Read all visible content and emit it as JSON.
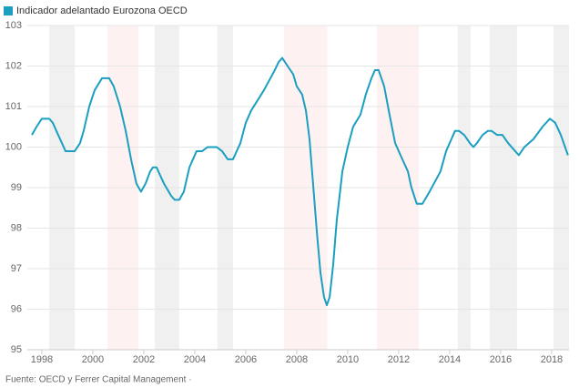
{
  "chart_data": {
    "type": "line",
    "legend": "top-left",
    "grid": true,
    "source": "Fuente: OECD y Ferrer Capital Management ·",
    "xlim": [
      1997.43,
      2018.68
    ],
    "xticks": [
      1998,
      2000,
      2002,
      2004,
      2006,
      2008,
      2010,
      2012,
      2014,
      2016,
      2018
    ],
    "ylim": [
      95,
      103
    ],
    "yticks": [
      95,
      96,
      97,
      98,
      99,
      100,
      101,
      102,
      103
    ],
    "bands": [
      {
        "start": 1998.29,
        "end": 1999.29,
        "color": "#f0f0f0"
      },
      {
        "start": 2000.57,
        "end": 2001.79,
        "color": "#fdf1f1"
      },
      {
        "start": 2002.43,
        "end": 2003.39,
        "color": "#f0f0f0"
      },
      {
        "start": 2004.89,
        "end": 2005.5,
        "color": "#f0f0f0"
      },
      {
        "start": 2007.5,
        "end": 2009.2,
        "color": "#fdf1f1"
      },
      {
        "start": 2011.14,
        "end": 2012.79,
        "color": "#fdf1f1"
      },
      {
        "start": 2014.32,
        "end": 2014.82,
        "color": "#f0f0f0"
      },
      {
        "start": 2015.57,
        "end": 2016.64,
        "color": "#f0f0f0"
      },
      {
        "start": 2018.07,
        "end": 2018.68,
        "color": "#f0f0f0"
      }
    ],
    "x": [
      1997.61,
      1997.79,
      1998.0,
      1998.29,
      1998.43,
      1998.57,
      1998.93,
      1999.29,
      1999.5,
      1999.64,
      1999.86,
      2000.07,
      2000.36,
      2000.64,
      2000.82,
      2001.07,
      2001.29,
      2001.5,
      2001.71,
      2001.89,
      2002.07,
      2002.25,
      2002.36,
      2002.5,
      2002.79,
      2003.07,
      2003.21,
      2003.39,
      2003.57,
      2003.79,
      2004.07,
      2004.29,
      2004.5,
      2004.86,
      2005.07,
      2005.29,
      2005.5,
      2005.79,
      2006.0,
      2006.21,
      2006.71,
      2007.14,
      2007.29,
      2007.43,
      2007.64,
      2007.86,
      2008.0,
      2008.21,
      2008.36,
      2008.5,
      2008.64,
      2008.79,
      2008.93,
      2009.07,
      2009.18,
      2009.29,
      2009.43,
      2009.57,
      2009.79,
      2010.0,
      2010.21,
      2010.5,
      2010.71,
      2010.93,
      2011.07,
      2011.21,
      2011.43,
      2011.64,
      2011.86,
      2012.07,
      2012.36,
      2012.5,
      2012.71,
      2012.93,
      2013.21,
      2013.64,
      2013.86,
      2014.07,
      2014.21,
      2014.36,
      2014.57,
      2014.79,
      2014.93,
      2015.07,
      2015.29,
      2015.5,
      2015.64,
      2015.86,
      2016.07,
      2016.29,
      2016.57,
      2016.71,
      2016.93,
      2017.29,
      2017.64,
      2017.93,
      2018.14,
      2018.36,
      2018.64
    ],
    "series": [
      {
        "name": "Indicador adelantado Eurozona OECD",
        "color": "#1a9fc0",
        "values": [
          100.3,
          100.5,
          100.7,
          100.7,
          100.6,
          100.4,
          99.9,
          99.9,
          100.1,
          100.4,
          101.0,
          101.4,
          101.7,
          101.7,
          101.5,
          101.0,
          100.4,
          99.7,
          99.1,
          98.9,
          99.1,
          99.4,
          99.5,
          99.5,
          99.1,
          98.8,
          98.7,
          98.7,
          98.9,
          99.5,
          99.9,
          99.9,
          100.0,
          100.0,
          99.9,
          99.7,
          99.7,
          100.1,
          100.6,
          100.9,
          101.4,
          101.9,
          102.1,
          102.2,
          102.0,
          101.8,
          101.5,
          101.3,
          100.9,
          100.2,
          99.1,
          97.9,
          96.9,
          96.3,
          96.1,
          96.3,
          97.1,
          98.2,
          99.4,
          100.0,
          100.5,
          100.8,
          101.3,
          101.7,
          101.9,
          101.9,
          101.5,
          100.8,
          100.1,
          99.8,
          99.4,
          99.0,
          98.6,
          98.6,
          98.9,
          99.4,
          99.9,
          100.2,
          100.4,
          100.4,
          100.3,
          100.1,
          100.0,
          100.1,
          100.3,
          100.4,
          100.4,
          100.3,
          100.3,
          100.1,
          99.9,
          99.8,
          100.0,
          100.2,
          100.5,
          100.7,
          100.6,
          100.3,
          99.8
        ]
      }
    ]
  }
}
